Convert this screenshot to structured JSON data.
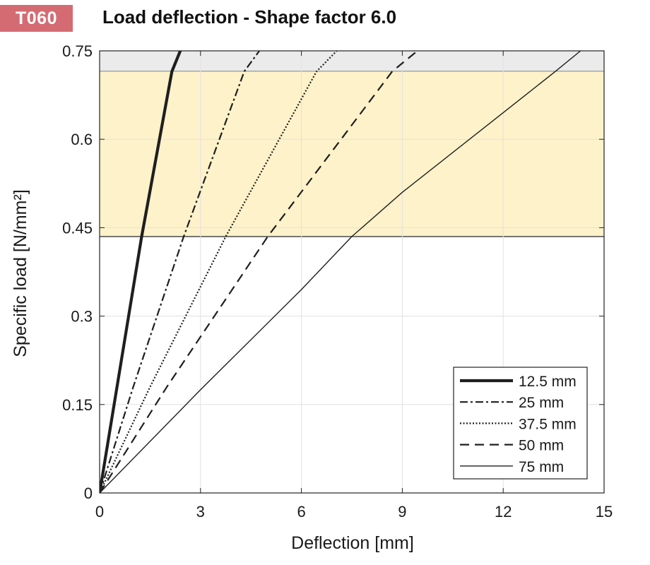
{
  "header": {
    "badge": "T060",
    "title": "Load deflection - Shape factor 6.0"
  },
  "colors": {
    "badge": "#d46b73",
    "band_gray": "#ebebeb",
    "band_yellow": "#fdf2c9",
    "line": "#1f1f1f",
    "grid": "#e1e1e1"
  },
  "chart_data": {
    "type": "line",
    "xlabel": "Deflection  [mm]",
    "ylabel": "Specific load [N/mm²]",
    "xlim": [
      0,
      15
    ],
    "ylim": [
      0,
      0.75
    ],
    "x_ticks": [
      0,
      3,
      6,
      9,
      12,
      15
    ],
    "x_tick_labels": [
      "0",
      "3",
      "6",
      "9",
      "12",
      "15"
    ],
    "y_ticks": [
      0,
      0.15,
      0.3,
      0.45,
      0.6,
      0.75
    ],
    "y_tick_labels": [
      "0",
      "0.15",
      "0.3",
      "0.45",
      "0.6",
      "0.75"
    ],
    "grid": true,
    "legend_position": "lower-right",
    "bands": [
      {
        "from": 0.715,
        "to": 0.75,
        "color": "#ebebeb"
      },
      {
        "from": 0.435,
        "to": 0.715,
        "color": "#fdf2c9"
      }
    ],
    "series": [
      {
        "name": "12.5 mm",
        "style": "solid-thick",
        "points": [
          [
            0,
            0
          ],
          [
            1.25,
            0.435
          ],
          [
            2.15,
            0.715
          ],
          [
            2.4,
            0.75
          ]
        ]
      },
      {
        "name": "25 mm",
        "style": "dashdot",
        "points": [
          [
            0,
            0
          ],
          [
            1.0,
            0.18
          ],
          [
            2.5,
            0.435
          ],
          [
            4.3,
            0.715
          ],
          [
            4.75,
            0.75
          ]
        ]
      },
      {
        "name": "37.5 mm",
        "style": "dotted",
        "points": [
          [
            0,
            0
          ],
          [
            1.5,
            0.18
          ],
          [
            3.75,
            0.435
          ],
          [
            6.45,
            0.715
          ],
          [
            7.05,
            0.75
          ]
        ]
      },
      {
        "name": "50 mm",
        "style": "dashed",
        "points": [
          [
            0,
            0
          ],
          [
            2.0,
            0.18
          ],
          [
            5.0,
            0.435
          ],
          [
            8.7,
            0.715
          ],
          [
            9.45,
            0.75
          ]
        ]
      },
      {
        "name": "75 mm",
        "style": "solid-thin",
        "points": [
          [
            0,
            0
          ],
          [
            3.0,
            0.175
          ],
          [
            6.0,
            0.345
          ],
          [
            7.5,
            0.435
          ],
          [
            9.0,
            0.51
          ],
          [
            12.0,
            0.645
          ],
          [
            13.55,
            0.715
          ],
          [
            14.3,
            0.75
          ]
        ]
      }
    ]
  }
}
